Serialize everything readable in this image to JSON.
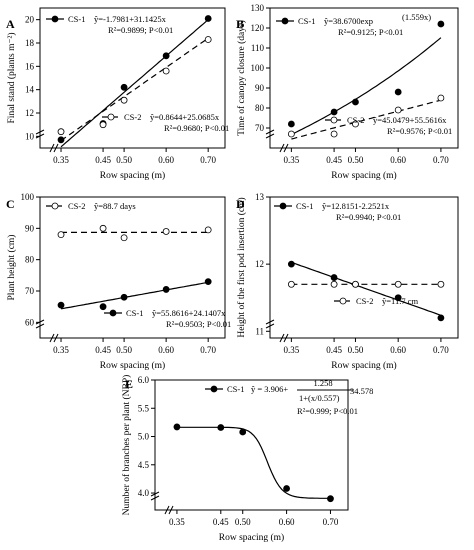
{
  "chart_data": [
    {
      "panel": "A",
      "type": "scatter",
      "xlabel": "Row spacing (m)",
      "ylabel": "Final stand (plants m⁻²)",
      "xticks": [
        "0.35",
        "0.45",
        "0.50",
        "0.60",
        "0.70"
      ],
      "yticks": [
        "10",
        "12",
        "14",
        "16",
        "18",
        "20"
      ],
      "xlim": [
        0.3,
        0.74
      ],
      "ylim": [
        9,
        21
      ],
      "series": [
        {
          "name": "CS-1",
          "marker": "filled",
          "line": "solid",
          "equation": "ŷ=-1.7981+31.1425x",
          "stats": "R²=0.9899; P<0.01",
          "x": [
            0.35,
            0.45,
            0.5,
            0.6,
            0.7
          ],
          "y": [
            9.7,
            11.1,
            14.2,
            16.9,
            20.1
          ],
          "fit": {
            "kind": "linear",
            "a": -1.7981,
            "b": 31.1425
          }
        },
        {
          "name": "CS-2",
          "marker": "open",
          "line": "dashed",
          "equation": "ŷ=0.8644+25.0685x",
          "stats": "R²=0.9680; P<0.01",
          "x": [
            0.35,
            0.45,
            0.5,
            0.6,
            0.7
          ],
          "y": [
            10.4,
            11.0,
            13.1,
            15.6,
            18.3
          ],
          "fit": {
            "kind": "linear",
            "a": 0.8644,
            "b": 25.0685
          }
        }
      ]
    },
    {
      "panel": "B",
      "type": "scatter",
      "xlabel": "Row spacing (m)",
      "ylabel": "Time of canopy closure (days)",
      "xticks": [
        "0.35",
        "0.45",
        "0.50",
        "0.60",
        "0.70"
      ],
      "yticks": [
        "70",
        "80",
        "90",
        "100",
        "110",
        "120",
        "130"
      ],
      "xlim": [
        0.3,
        0.74
      ],
      "ylim": [
        60,
        130
      ],
      "series": [
        {
          "name": "CS-1",
          "marker": "filled",
          "line": "solid",
          "equation": "ŷ=38.6700exp",
          "equation_sup": "(1.559x)",
          "stats": "R²=0.9125; P<0.01",
          "x": [
            0.35,
            0.45,
            0.5,
            0.6,
            0.7
          ],
          "y": [
            72,
            78,
            83,
            88,
            122
          ],
          "fit": {
            "kind": "exp",
            "a": 38.67,
            "b": 1.559
          }
        },
        {
          "name": "CS-2",
          "marker": "open",
          "line": "dashed",
          "equation": "ŷ=45.0479+55.5616x",
          "stats": "R²=0.9576; P<0.01",
          "x": [
            0.35,
            0.45,
            0.5,
            0.6,
            0.7
          ],
          "y": [
            67,
            67,
            72,
            79,
            85
          ],
          "fit": {
            "kind": "linear",
            "a": 45.0479,
            "b": 55.5616
          }
        }
      ]
    },
    {
      "panel": "C",
      "type": "scatter",
      "xlabel": "Row spacing (m)",
      "ylabel": "Plant height (cm)",
      "xticks": [
        "0.35",
        "0.45",
        "0.50",
        "0.60",
        "0.70"
      ],
      "yticks": [
        "60",
        "70",
        "80",
        "90",
        "100"
      ],
      "xlim": [
        0.3,
        0.74
      ],
      "ylim": [
        55,
        100
      ],
      "series": [
        {
          "name": "CS-2",
          "marker": "open",
          "line": "dashed",
          "equation": "ŷ=88.7 days",
          "stats": "",
          "x": [
            0.35,
            0.45,
            0.5,
            0.6,
            0.7
          ],
          "y": [
            88,
            90,
            87,
            89,
            89.5
          ],
          "fit": {
            "kind": "constant",
            "a": 88.7
          }
        },
        {
          "name": "CS-1",
          "marker": "filled",
          "line": "solid",
          "equation": "ŷ=55.8616+24.1407x",
          "stats": "R²=0.9503; P<0.01",
          "x": [
            0.35,
            0.45,
            0.5,
            0.6,
            0.7
          ],
          "y": [
            65.5,
            65,
            68,
            70.5,
            73
          ],
          "fit": {
            "kind": "linear",
            "a": 55.8616,
            "b": 24.1407
          }
        }
      ]
    },
    {
      "panel": "D",
      "type": "scatter",
      "xlabel": "Row spacing (m)",
      "ylabel": "Height of the first pod insertion (cm)",
      "xticks": [
        "0.35",
        "0.45",
        "0.50",
        "0.60",
        "0.70"
      ],
      "yticks": [
        "11",
        "12",
        "13"
      ],
      "xlim": [
        0.3,
        0.74
      ],
      "ylim": [
        10.9,
        13.0
      ],
      "series": [
        {
          "name": "CS-1",
          "marker": "filled",
          "line": "solid",
          "equation": "ŷ=12.8151-2.2521x",
          "stats": "R²=0.9940; P<0.01",
          "x": [
            0.35,
            0.45,
            0.5,
            0.6,
            0.7
          ],
          "y": [
            12.0,
            11.8,
            11.7,
            11.5,
            11.2
          ],
          "fit": {
            "kind": "linear",
            "a": 12.8151,
            "b": -2.2521
          }
        },
        {
          "name": "CS-2",
          "marker": "open",
          "line": "dashed",
          "equation": "ŷ=11.7 cm",
          "stats": "",
          "x": [
            0.35,
            0.45,
            0.5,
            0.6,
            0.7
          ],
          "y": [
            11.7,
            11.7,
            11.7,
            11.7,
            11.7
          ],
          "fit": {
            "kind": "constant",
            "a": 11.7
          }
        }
      ]
    },
    {
      "panel": "E",
      "type": "scatter",
      "xlabel": "Row spacing (m)",
      "ylabel": "Number of branches per plant (NBP)",
      "xticks": [
        "0.35",
        "0.45",
        "0.50",
        "0.60",
        "0.70"
      ],
      "yticks": [
        "4.0",
        "4.5",
        "5.0",
        "5.5",
        "6.0"
      ],
      "xlim": [
        0.3,
        0.74
      ],
      "ylim": [
        3.7,
        6.0
      ],
      "series": [
        {
          "name": "CS-1",
          "marker": "filled",
          "line": "solid",
          "equation_lead": "ŷ = 3.906+",
          "equation_num": "1.258",
          "equation_den": "1+(x/0.557)",
          "equation_exp": "34.578",
          "stats": "R²=0.999; P<0.01",
          "x": [
            0.35,
            0.45,
            0.5,
            0.6,
            0.7
          ],
          "y": [
            5.17,
            5.16,
            5.08,
            4.08,
            3.9
          ],
          "fit": {
            "kind": "sigmoid",
            "a": 3.906,
            "b": 1.258,
            "c": 0.557,
            "d": 34.578
          }
        }
      ]
    }
  ]
}
